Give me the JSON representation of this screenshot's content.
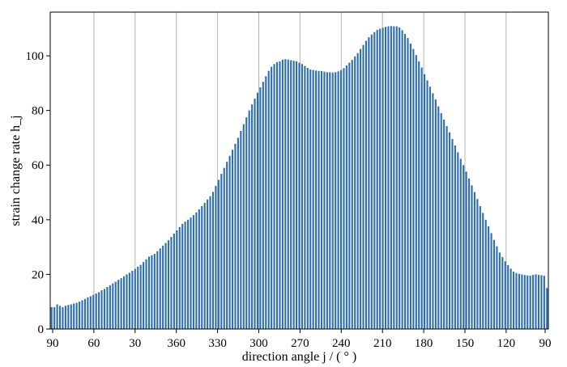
{
  "chart_data": {
    "type": "bar",
    "xlabel": "direction angle j / ( ° )",
    "ylabel": "strain change rate h_j",
    "ylim": [
      0,
      116
    ],
    "y_ticks": [
      0,
      20,
      40,
      60,
      80,
      100
    ],
    "x_tick_labels": [
      "90",
      "60",
      "30",
      "360",
      "330",
      "300",
      "270",
      "240",
      "210",
      "180",
      "150",
      "120",
      "90"
    ],
    "grid": "vertical lines at x ticks",
    "bar_color": "#2f6fb0",
    "series": [
      {
        "values": [
          8.0,
          8.0,
          9.0,
          8.5,
          8.0,
          8.5,
          8.8,
          9.0,
          9.3,
          9.6,
          10.0,
          10.5,
          11.0,
          11.6,
          12.0,
          12.5,
          13.0,
          13.5,
          14.2,
          14.7,
          15.4,
          16.0,
          16.7,
          17.3,
          18.0,
          18.6,
          19.3,
          20.0,
          20.6,
          21.3,
          22.0,
          22.8,
          23.5,
          24.5,
          25.5,
          26.5,
          27.0,
          27.5,
          28.5,
          29.5,
          30.5,
          31.5,
          32.5,
          33.7,
          34.9,
          36.1,
          37.3,
          38.5,
          39.3,
          40.0,
          40.8,
          41.7,
          42.7,
          43.8,
          45.0,
          46.2,
          47.4,
          48.6,
          50.2,
          52.4,
          54.6,
          56.8,
          59.0,
          61.2,
          63.4,
          65.6,
          67.8,
          70.0,
          72.5,
          75.0,
          77.5,
          80.0,
          82.2,
          84.3,
          86.5,
          88.5,
          90.5,
          92.5,
          94.5,
          96.0,
          97.0,
          97.7,
          98.0,
          98.6,
          98.8,
          98.6,
          98.4,
          98.2,
          98.0,
          97.5,
          97.0,
          96.3,
          95.6,
          95.0,
          94.8,
          94.6,
          94.5,
          94.4,
          94.2,
          94.0,
          94.0,
          93.9,
          94.0,
          94.3,
          94.8,
          95.5,
          96.5,
          97.5,
          98.5,
          99.8,
          101.0,
          102.5,
          104.0,
          105.5,
          106.8,
          107.8,
          108.7,
          109.5,
          109.9,
          110.3,
          110.6,
          110.8,
          110.9,
          110.8,
          110.8,
          110.4,
          109.4,
          108.0,
          106.5,
          104.5,
          102.5,
          100.3,
          98.0,
          95.7,
          93.3,
          91.0,
          88.7,
          86.3,
          84.0,
          81.5,
          79.0,
          76.7,
          74.3,
          72.0,
          69.6,
          67.2,
          64.7,
          62.3,
          60.0,
          57.6,
          55.1,
          52.6,
          50.1,
          47.6,
          45.0,
          42.5,
          40.0,
          37.6,
          35.1,
          32.6,
          30.3,
          28.0,
          26.3,
          24.8,
          23.4,
          22.1,
          21.0,
          20.5,
          20.2,
          20.0,
          19.8,
          19.6,
          19.5,
          19.8,
          20.0,
          19.8,
          19.7,
          19.5,
          15.0
        ]
      }
    ]
  }
}
